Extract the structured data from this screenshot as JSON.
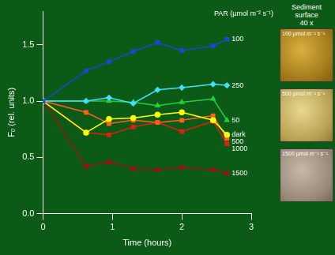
{
  "chart_data": {
    "type": "line",
    "x_label": "Time (hours)",
    "y_label": "Fₒ (rel. units)",
    "annotation": "PAR (µmol m⁻² s⁻¹)",
    "xlim": [
      0,
      3
    ],
    "xticks": [
      0,
      1,
      2,
      3
    ],
    "ylim": [
      0,
      1.8
    ],
    "yticks": [
      {
        "value": 0,
        "label": "0.0"
      },
      {
        "value": 0.5,
        "label": "0.5"
      },
      {
        "value": 1,
        "label": "1.0"
      },
      {
        "value": 1.5,
        "label": "1.5"
      }
    ],
    "grid": false,
    "x": [
      0,
      0.62,
      0.95,
      1.3,
      1.65,
      2.0,
      2.45,
      2.65
    ],
    "series": [
      {
        "name": "100",
        "color": "#1848d8",
        "marker": "square",
        "values": [
          1.0,
          1.27,
          1.35,
          1.44,
          1.52,
          1.45,
          1.49,
          1.55
        ]
      },
      {
        "name": "250",
        "color": "#40e0ff",
        "marker": "diamond",
        "values": [
          1.0,
          1.0,
          1.03,
          0.98,
          1.1,
          1.12,
          1.15,
          1.14
        ]
      },
      {
        "name": "50",
        "color": "#20d040",
        "marker": "triangle",
        "values": [
          1.0,
          1.0,
          1.0,
          0.99,
          0.96,
          0.99,
          1.02,
          0.83
        ]
      },
      {
        "name": "dark",
        "color": "#ffff00",
        "marker": "circle",
        "values": [
          1.0,
          0.72,
          0.84,
          0.85,
          0.88,
          0.9,
          0.83,
          0.7
        ]
      },
      {
        "name": "500",
        "color": "#ff6020",
        "marker": "square",
        "values": [
          1.0,
          0.9,
          0.8,
          0.83,
          0.81,
          0.83,
          0.87,
          0.67
        ]
      },
      {
        "name": "1000",
        "color": "#e02010",
        "marker": "square",
        "values": [
          1.0,
          0.72,
          0.7,
          0.77,
          0.81,
          0.73,
          0.82,
          0.62
        ]
      },
      {
        "name": "1500",
        "color": "#a01010",
        "marker": "square",
        "values": [
          1.0,
          0.42,
          0.46,
          0.4,
          0.39,
          0.41,
          0.39,
          0.36
        ]
      }
    ],
    "side_title": "Sediment surface\n40 x",
    "panels": [
      {
        "label": "100 µmol m⁻² s⁻¹"
      },
      {
        "label": "500 µmol m⁻² s⁻¹"
      },
      {
        "label": "1500 µmol m⁻² s⁻¹"
      }
    ]
  }
}
